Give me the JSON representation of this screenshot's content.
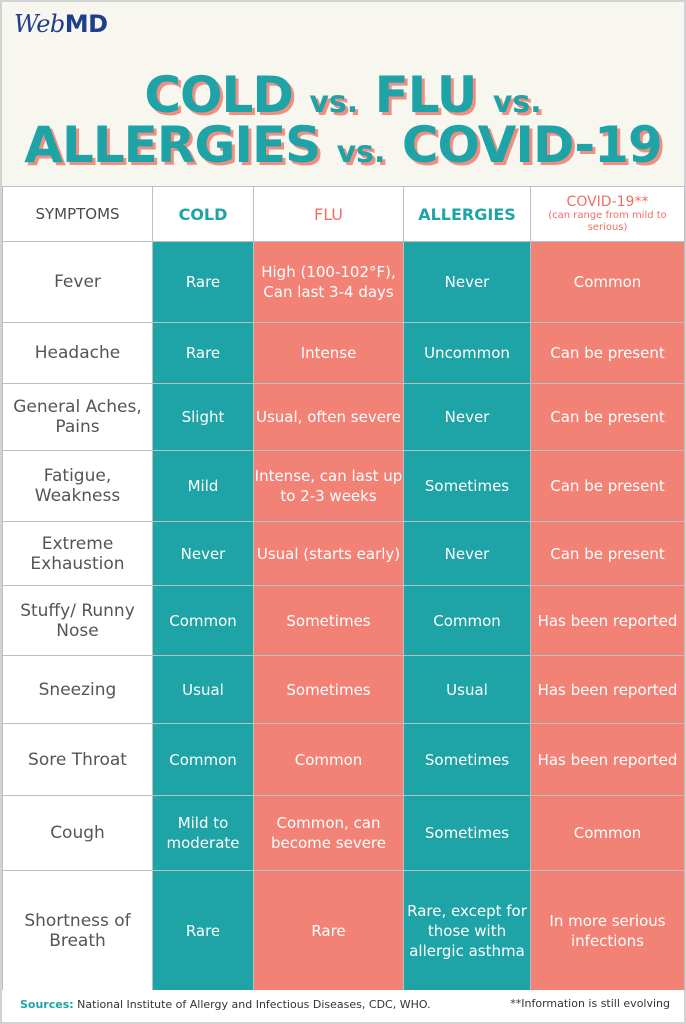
{
  "brand": {
    "logo_web": "Web",
    "logo_md": "MD"
  },
  "title": {
    "line1_a": "COLD",
    "line1_vs1": "vs.",
    "line1_b": "FLU",
    "line1_vs2": "vs.",
    "line2_a": "ALLERGIES",
    "line2_vs": "vs.",
    "line2_b": "COVID-19"
  },
  "headers": {
    "symptoms": "SYMPTOMS",
    "cold": "COLD",
    "flu": "FLU",
    "allergies": "ALLERGIES",
    "covid": "COVID-19**",
    "covid_note": "(can range from mild to serious)"
  },
  "rows": [
    {
      "symptom": "Fever",
      "cold": "Rare",
      "flu": "High (100-102°F), Can last 3-4 days",
      "allergies": "Never",
      "covid": "Common"
    },
    {
      "symptom": "Headache",
      "cold": "Rare",
      "flu": "Intense",
      "allergies": "Uncommon",
      "covid": "Can be present"
    },
    {
      "symptom": "General Aches, Pains",
      "cold": "Slight",
      "flu": "Usual, often severe",
      "allergies": "Never",
      "covid": "Can be present"
    },
    {
      "symptom": "Fatigue, Weakness",
      "cold": "Mild",
      "flu": "Intense, can last up to 2-3 weeks",
      "allergies": "Sometimes",
      "covid": "Can be present"
    },
    {
      "symptom": "Extreme Exhaustion",
      "cold": "Never",
      "flu": "Usual (starts early)",
      "allergies": "Never",
      "covid": "Can be present"
    },
    {
      "symptom": "Stuffy/ Runny Nose",
      "cold": "Common",
      "flu": "Sometimes",
      "allergies": "Common",
      "covid": "Has been reported"
    },
    {
      "symptom": "Sneezing",
      "cold": "Usual",
      "flu": "Sometimes",
      "allergies": "Usual",
      "covid": "Has been reported"
    },
    {
      "symptom": "Sore Throat",
      "cold": "Common",
      "flu": "Common",
      "allergies": "Sometimes",
      "covid": "Has been reported"
    },
    {
      "symptom": "Cough",
      "cold": "Mild to moderate",
      "flu": "Common, can become severe",
      "allergies": "Sometimes",
      "covid": "Common"
    },
    {
      "symptom": "Shortness of Breath",
      "cold": "Rare",
      "flu": "Rare",
      "allergies": "Rare, except for those with allergic asthma",
      "covid": "In more serious infections"
    }
  ],
  "footer": {
    "sources_label": "Sources:",
    "sources_text": "National Institute of Allergy and Infectious Diseases, CDC, WHO.",
    "note": "**Information is still evolving"
  }
}
